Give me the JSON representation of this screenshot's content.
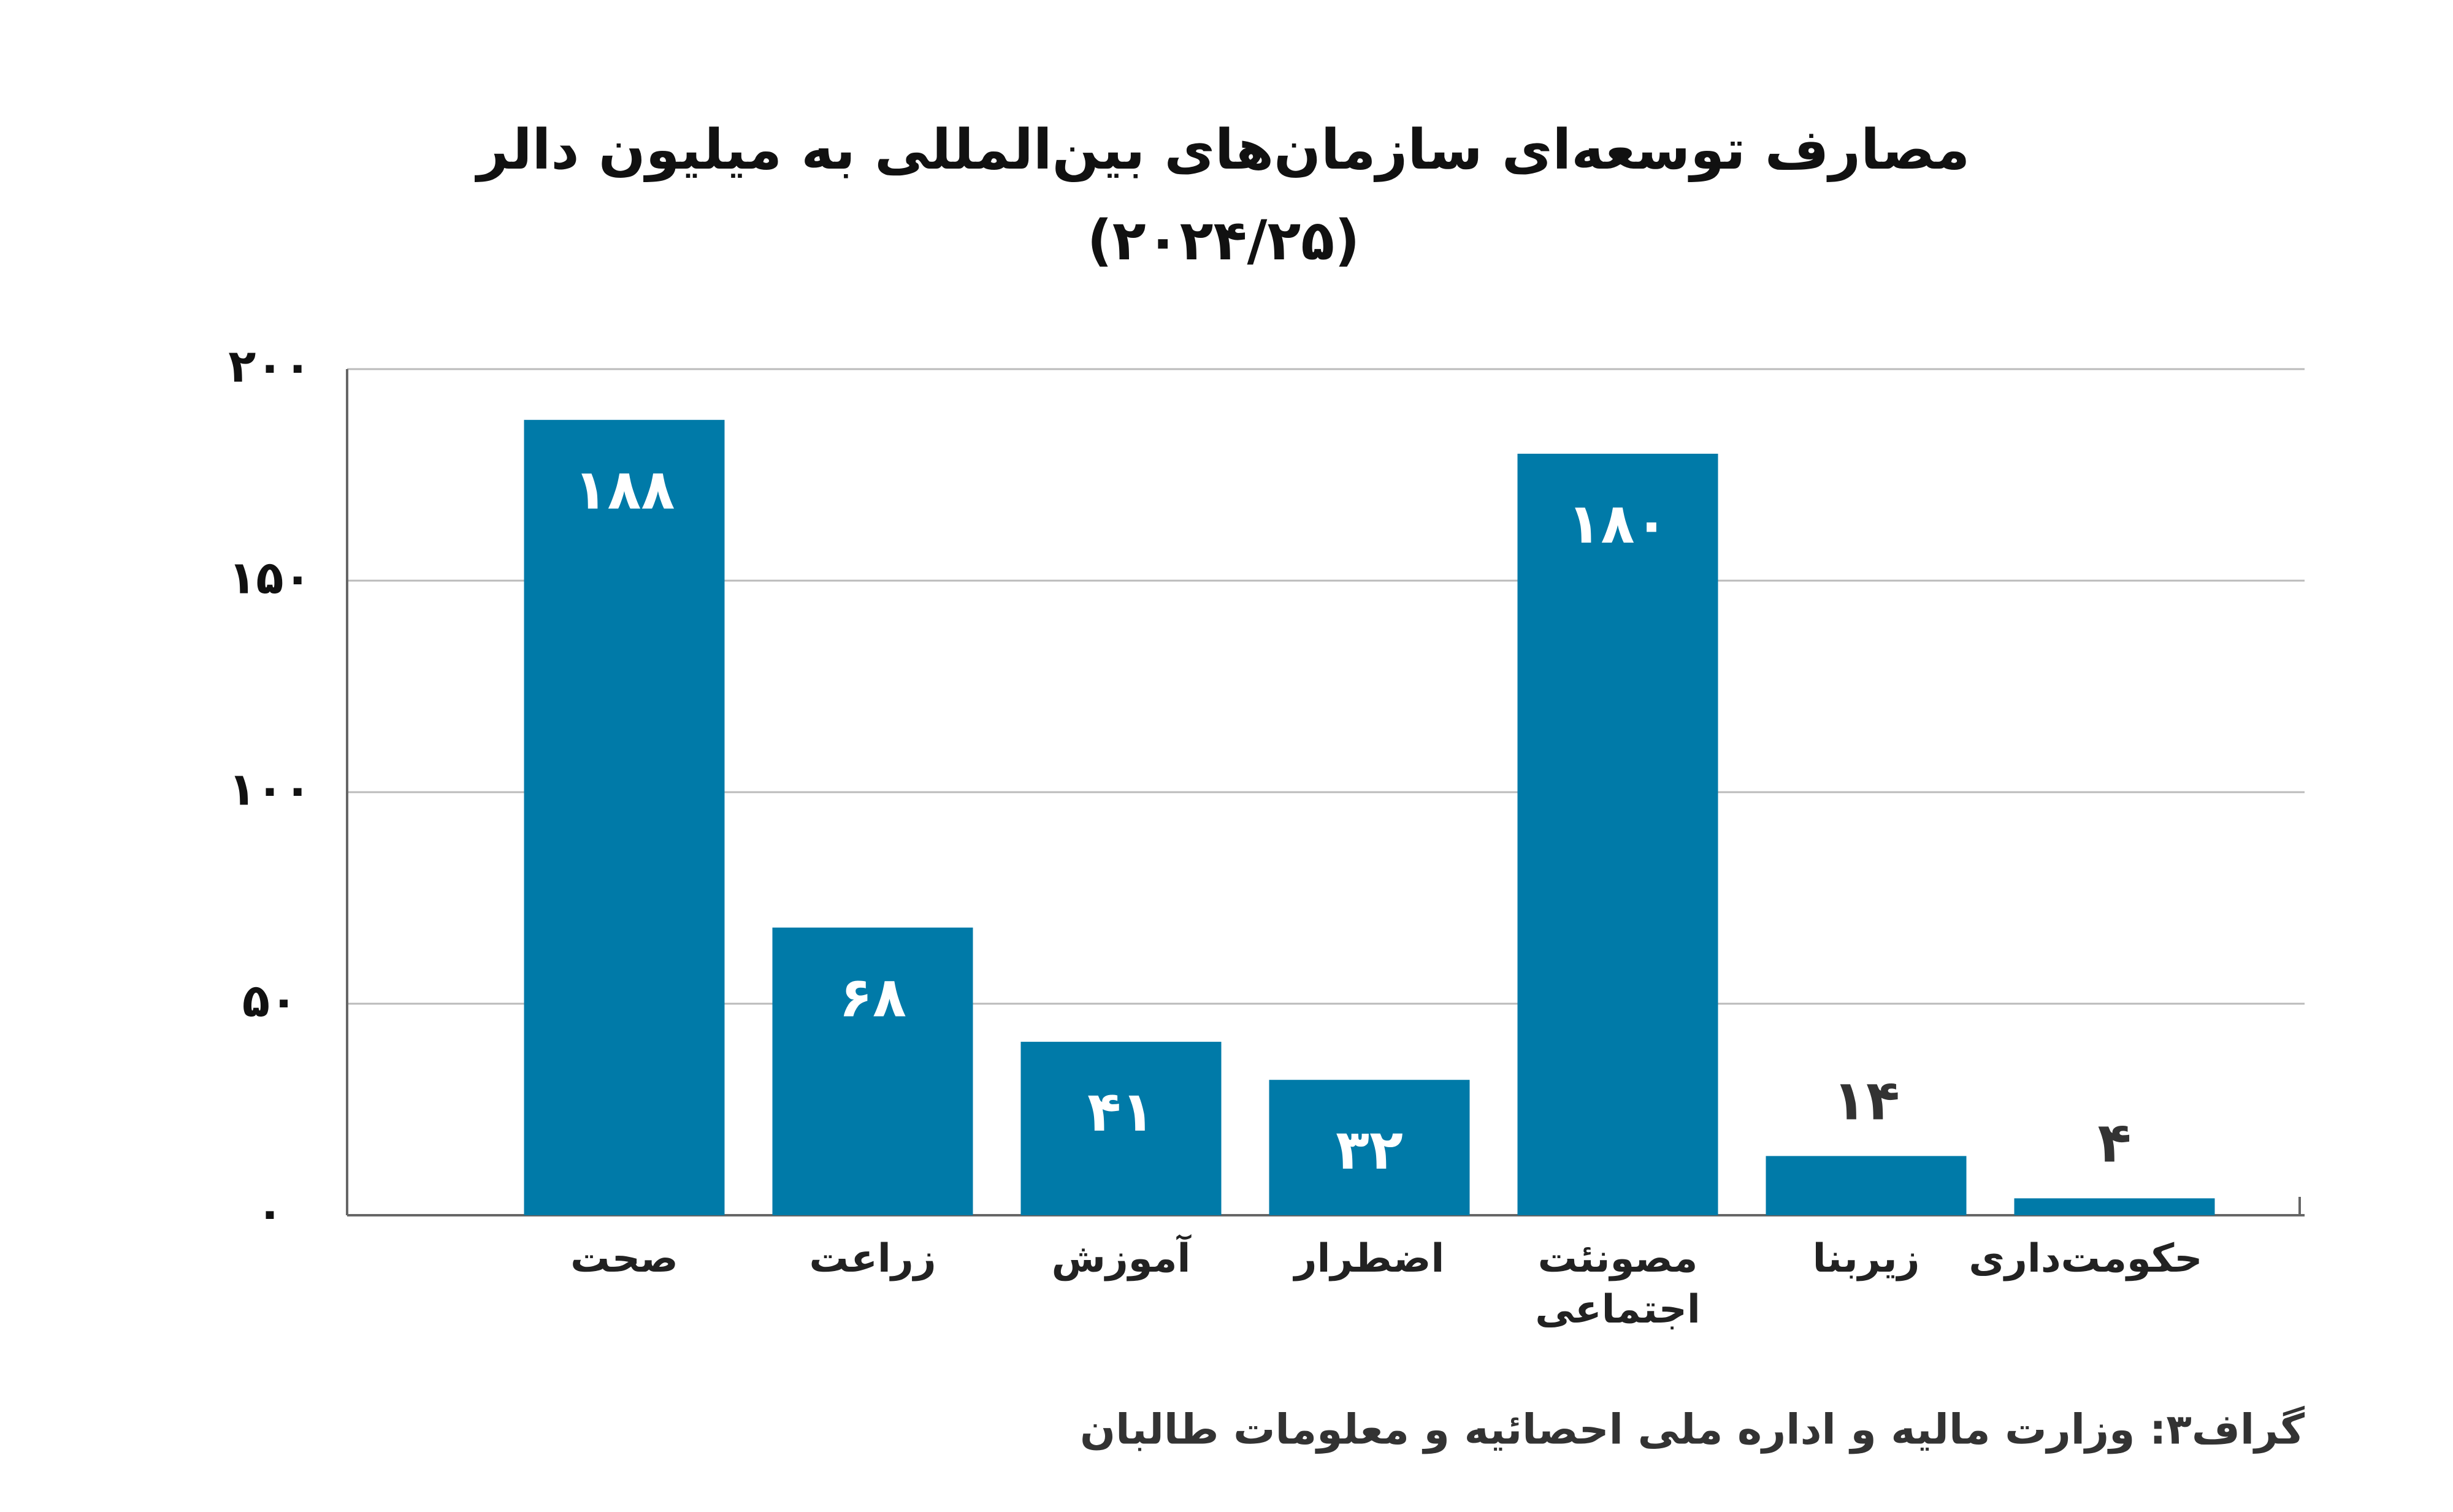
{
  "chart_data": {
    "type": "bar",
    "title": "مصارف توسعه‌ای سازمان‌های بین‌المللی به میلیون دالر",
    "subtitle": "(۲۰۲۴/۲۵)",
    "categories": [
      "صحت",
      "زراعت",
      "آموزش",
      "اضطرار",
      "مصونئت اجتماعی",
      "زیربنا",
      "حکومت‌داری"
    ],
    "values": [
      188,
      68,
      41,
      32,
      180,
      14,
      4
    ],
    "value_labels": [
      "۱۸۸",
      "۶۸",
      "۴۱",
      "۳۲",
      "۱۸۰",
      "۱۴",
      "۴"
    ],
    "color": "#007aa8",
    "ylim": [
      0,
      200
    ],
    "yticks": [
      {
        "value": 0,
        "label": "۰"
      },
      {
        "value": 50,
        "label": "۵۰"
      },
      {
        "value": 100,
        "label": "۱۰۰"
      },
      {
        "value": 150,
        "label": "۱۵۰"
      },
      {
        "value": 200,
        "label": "۲۰۰"
      }
    ],
    "grid": true,
    "source": "گراف۳: وزارت ماليه و اداره ملی احصائیه و معلومات طالبان"
  }
}
